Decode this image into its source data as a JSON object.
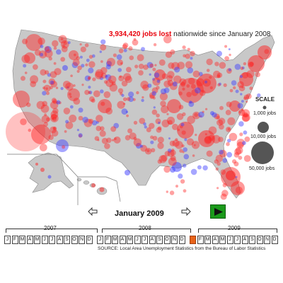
{
  "headline": {
    "jobs_lost": "3,934,420 jobs lost",
    "suffix": "nationwide since January 2008"
  },
  "scale": {
    "title": "SCALE",
    "entries": [
      {
        "label": "1,000 jobs"
      },
      {
        "label": "10,000 jobs"
      },
      {
        "label": "50,000 jobs"
      }
    ]
  },
  "timeline": {
    "current_month": "January 2009",
    "years": [
      {
        "label": "2007"
      },
      {
        "label": "2008"
      },
      {
        "label": "2009"
      }
    ],
    "months": [
      "J",
      "F",
      "M",
      "A",
      "M",
      "J",
      "J",
      "A",
      "S",
      "O",
      "N",
      "D",
      "J",
      "F",
      "M",
      "A",
      "M",
      "J",
      "J",
      "A",
      "S",
      "O",
      "N",
      "D",
      "J",
      "F",
      "M",
      "A",
      "M",
      "J",
      "J",
      "A",
      "S",
      "O",
      "N",
      "D"
    ],
    "active_month_index": 24
  },
  "icons": {
    "prev": "arrow-left-icon",
    "next": "arrow-right-icon",
    "play": "play-icon"
  },
  "colors": {
    "loss": "#ff2020",
    "gain": "#3a3aff",
    "land": "#c8c8c8",
    "active_month": "#e8641a",
    "play": "#1b9a1b"
  },
  "source": "SOURCE: Local Area Unemployment Statistics from the Bureau of Labor Statistics"
}
